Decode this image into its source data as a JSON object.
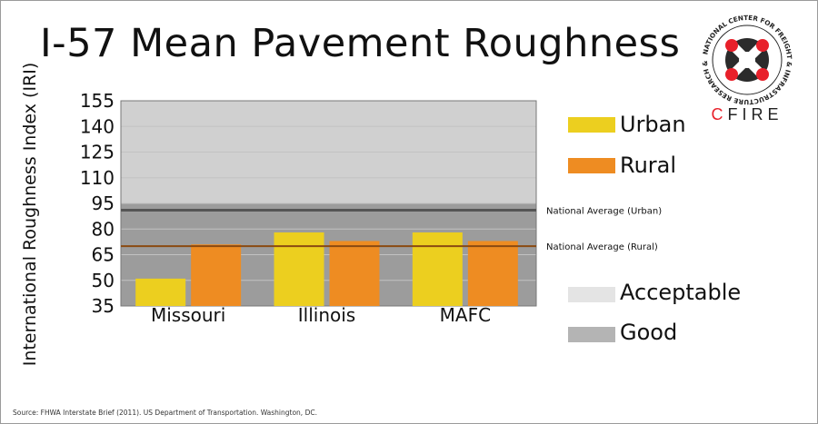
{
  "title": "I-57 Mean Pavement Roughness",
  "ylabel": "International Roughness Index (IRI)",
  "source": "Source: FHWA Interstate Brief (2011). US Department of Transportation. Washington, DC.",
  "logo": {
    "ring_text": "NATIONAL CENTER FOR FREIGHT & INFRASTRUCTURE RESEARCH & EDUCATION",
    "name": "CFIRE",
    "accent": "#e8202a"
  },
  "colors": {
    "urban": "#eccf1f",
    "rural": "#ee8c22",
    "acceptable_band": "#d0d0d0",
    "good_band": "#9c9c9c",
    "urban_line": "#555555",
    "rural_line": "#8a4a12"
  },
  "legend": {
    "urban": "Urban",
    "rural": "Rural",
    "acceptable": "Acceptable",
    "good": "Good"
  },
  "chart_data": {
    "type": "bar",
    "title": "I-57 Mean Pavement Roughness",
    "ylabel": "International Roughness Index (IRI)",
    "categories": [
      "Missouri",
      "Illinois",
      "MAFC"
    ],
    "series": [
      {
        "name": "Urban",
        "values": [
          51,
          78,
          78
        ]
      },
      {
        "name": "Rural",
        "values": [
          71,
          73,
          73
        ]
      }
    ],
    "ylim": [
      35,
      155
    ],
    "yticks": [
      35,
      50,
      65,
      80,
      95,
      110,
      125,
      140,
      155
    ],
    "bands": [
      {
        "name": "Good",
        "from": 35,
        "to": 95
      },
      {
        "name": "Acceptable",
        "from": 95,
        "to": 155
      }
    ],
    "reference_lines": [
      {
        "label": "National Average (Urban)",
        "value": 91
      },
      {
        "label": "National Average (Rural)",
        "value": 70
      }
    ],
    "legend_position": "right"
  }
}
